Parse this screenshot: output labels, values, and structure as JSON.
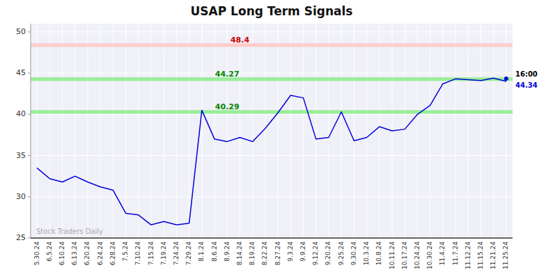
{
  "chart_data": {
    "type": "line",
    "title": "USAP Long Term Signals",
    "categories": [
      "5.30.24",
      "6.5.24",
      "6.10.24",
      "6.13.24",
      "6.20.24",
      "6.24.24",
      "6.28.24",
      "7.5.24",
      "7.10.24",
      "7.15.24",
      "7.19.24",
      "7.24.24",
      "7.29.24",
      "8.1.24",
      "8.6.24",
      "8.9.24",
      "8.14.24",
      "8.19.24",
      "8.22.24",
      "8.27.24",
      "9.3.24",
      "9.9.24",
      "9.12.24",
      "9.20.24",
      "9.25.24",
      "9.30.24",
      "10.3.24",
      "10.8.24",
      "10.11.24",
      "10.17.24",
      "10.24.24",
      "10.30.24",
      "11.4.24",
      "11.7.24",
      "11.12.24",
      "11.15.24",
      "11.21.24",
      "11.25.24"
    ],
    "values": [
      33.5,
      32.2,
      31.8,
      32.5,
      31.8,
      31.2,
      30.8,
      28.0,
      27.8,
      26.6,
      27.0,
      26.6,
      26.8,
      40.5,
      37.0,
      36.7,
      37.2,
      36.7,
      38.3,
      40.2,
      42.3,
      42.0,
      37.0,
      37.2,
      40.3,
      36.8,
      37.2,
      38.5,
      38.0,
      38.2,
      40.0,
      41.1,
      43.7,
      44.3,
      44.2,
      44.1,
      44.4,
      44.0
    ],
    "color": "#0000dd",
    "ylim": [
      25,
      51
    ],
    "yticks": [
      25,
      30,
      35,
      40,
      45,
      50
    ],
    "grid": true,
    "bands": [
      {
        "value": 48.4,
        "label": "48.4",
        "color": "#ffcccc",
        "label_color": "#cc0000"
      },
      {
        "value": 44.27,
        "label": "44.27",
        "color": "#99ee99",
        "label_color": "#008800"
      },
      {
        "value": 40.29,
        "label": "40.29",
        "color": "#99ee99",
        "label_color": "#008800"
      }
    ],
    "last_point": {
      "value": 44.34,
      "time": "16:00"
    },
    "watermark": "Stock Traders Daily"
  }
}
